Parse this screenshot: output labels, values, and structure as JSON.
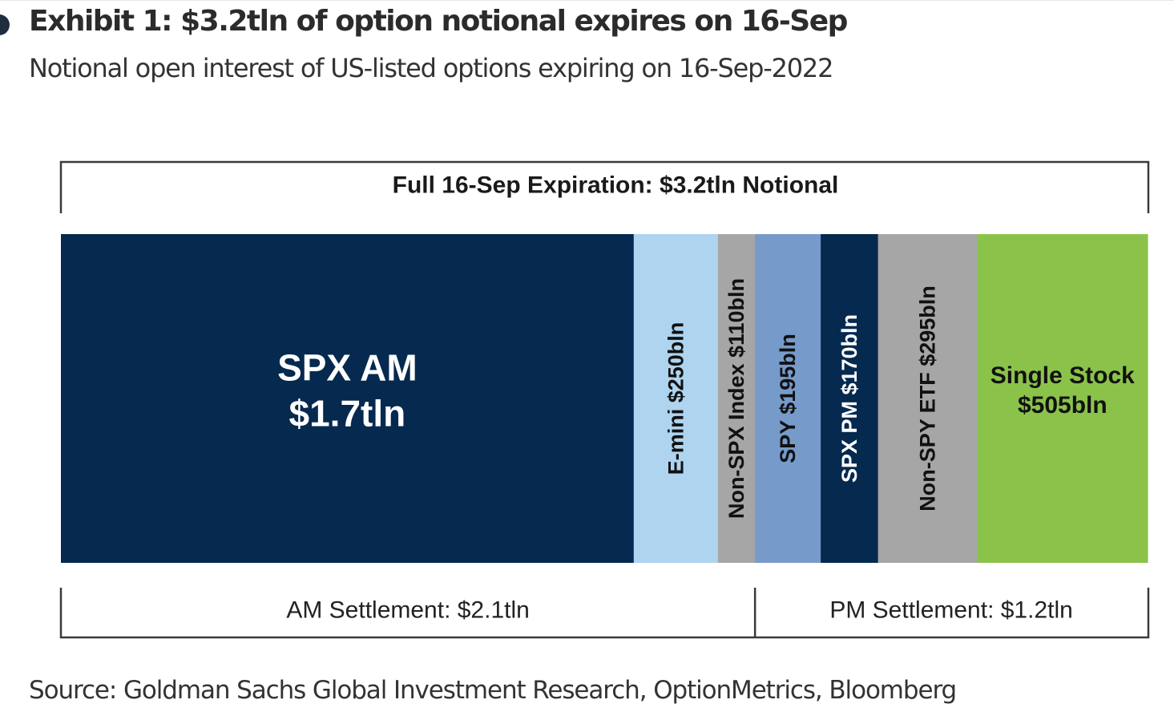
{
  "header": {
    "title": "Exhibit 1: $3.2tln of option notional expires on 16-Sep",
    "subtitle": "Notional open interest of US-listed options expiring on 16-Sep-2022"
  },
  "footer": {
    "source": "Source: Goldman Sachs Global Investment Research, OptionMetrics, Bloomberg"
  },
  "chart_data": {
    "type": "bar",
    "orientation": "horizontal-stacked-segments",
    "unit": "USD bln",
    "total_label": "Full 16-Sep Expiration: $3.2tln Notional",
    "segments": [
      {
        "category": "SPX AM",
        "value": 1700,
        "label_lines": [
          "SPX AM",
          "$1.7tln"
        ],
        "orientation": "horizontal",
        "color": "#05294f",
        "text_color": "#ffffff",
        "group": "AM"
      },
      {
        "category": "E-mini",
        "value": 250,
        "label_lines": [
          "E-mini $250bln"
        ],
        "orientation": "vertical",
        "color": "#aed4f0",
        "text_color": "#111111",
        "group": "AM"
      },
      {
        "category": "Non-SPX Index",
        "value": 110,
        "label_lines": [
          "Non-SPX Index $110bln"
        ],
        "orientation": "vertical",
        "color": "#a6a6a6",
        "text_color": "#111111",
        "group": "AM"
      },
      {
        "category": "SPY",
        "value": 195,
        "label_lines": [
          "SPY $195bln"
        ],
        "orientation": "vertical",
        "color": "#769bcb",
        "text_color": "#111111",
        "group": "PM"
      },
      {
        "category": "SPX PM",
        "value": 170,
        "label_lines": [
          "SPX PM $170bln"
        ],
        "orientation": "vertical",
        "color": "#05294f",
        "text_color": "#ffffff",
        "group": "PM"
      },
      {
        "category": "Non-SPY ETF",
        "value": 295,
        "label_lines": [
          "Non-SPY ETF $295bln"
        ],
        "orientation": "vertical",
        "color": "#a6a6a6",
        "text_color": "#111111",
        "group": "PM"
      },
      {
        "category": "Single Stock",
        "value": 505,
        "label_lines": [
          "Single Stock",
          "$505bln"
        ],
        "orientation": "horizontal",
        "color": "#8bc34a",
        "text_color": "#111111",
        "group": "PM"
      }
    ],
    "settlement_groups": [
      {
        "id": "AM",
        "label": "AM Settlement: $2.1tln",
        "value": 2060
      },
      {
        "id": "PM",
        "label": "PM Settlement: $1.2tln",
        "value": 1165
      }
    ]
  }
}
